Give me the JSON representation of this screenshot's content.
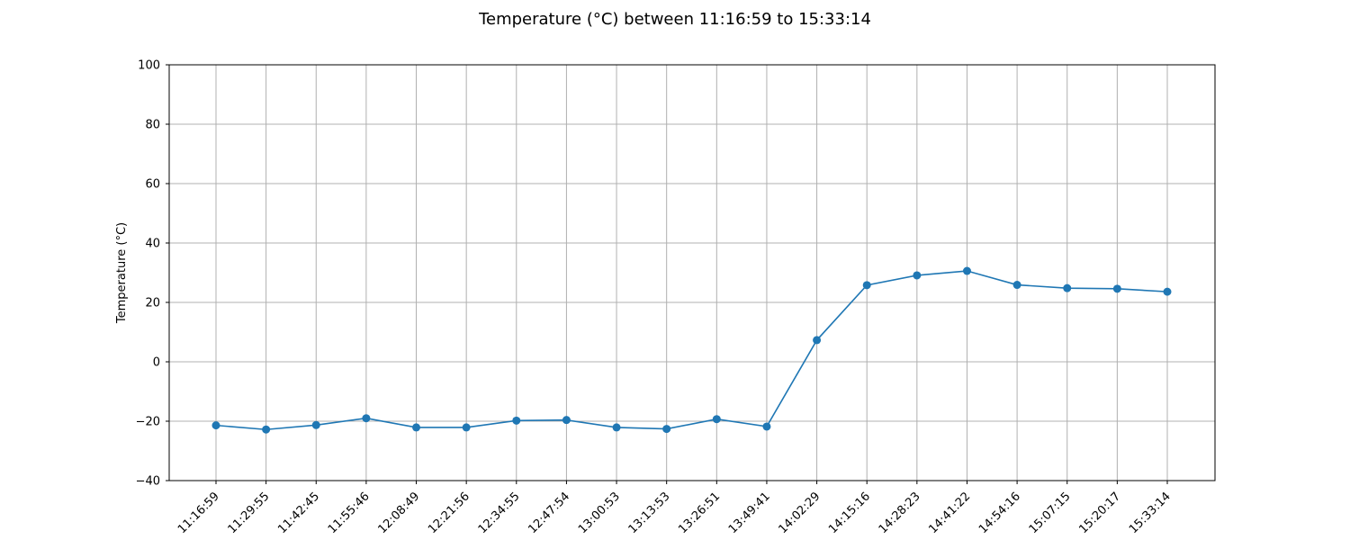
{
  "chart_data": {
    "type": "line",
    "title": "Temperature (°C) between 11:16:59 to 15:33:14",
    "xlabel": "",
    "ylabel": "Temperature (°C)",
    "ylim": [
      -40,
      100
    ],
    "yticks": [
      -40,
      -20,
      0,
      20,
      40,
      60,
      80,
      100
    ],
    "grid": true,
    "categories": [
      "11:16:59",
      "11:29:55",
      "11:42:45",
      "11:55:46",
      "12:08:49",
      "12:21:56",
      "12:34:55",
      "12:47:54",
      "13:00:53",
      "13:13:53",
      "13:26:51",
      "13:49:41",
      "14:02:29",
      "14:15:16",
      "14:28:23",
      "14:41:22",
      "14:54:16",
      "15:07:15",
      "15:20:17",
      "15:33:14"
    ],
    "series": [
      {
        "color": "#1f77b4",
        "values": [
          -21.4,
          -22.8,
          -21.3,
          -19.0,
          -22.1,
          -22.1,
          -19.8,
          -19.6,
          -22.1,
          -22.6,
          -19.3,
          -21.8,
          7.3,
          25.8,
          29.1,
          30.6,
          25.9,
          24.8,
          24.6,
          23.6
        ]
      }
    ]
  }
}
